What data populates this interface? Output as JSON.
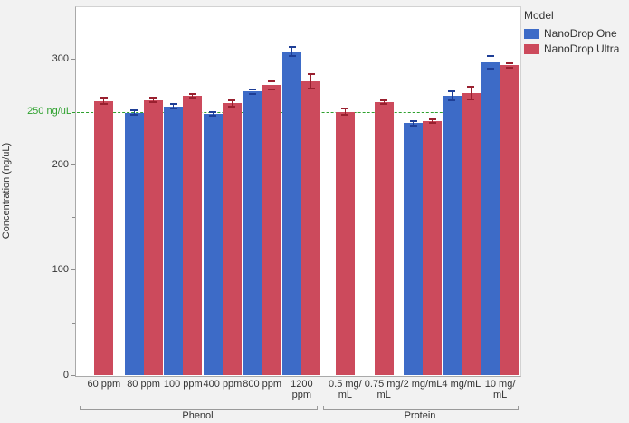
{
  "chart_data": {
    "type": "bar",
    "title": "",
    "ylabel": "Concentration (ng/uL)",
    "ylim": [
      0,
      350
    ],
    "y_ticks": [
      0,
      100,
      200,
      300
    ],
    "y_minor_step": 50,
    "grid": false,
    "reference_line": {
      "value": 250,
      "label": "250 ng/uL",
      "color": "#2EA12E",
      "style": "dashed"
    },
    "legend": {
      "title": "Model",
      "position": "top-right",
      "entries": [
        {
          "label": "NanoDrop One",
          "color": "#3D6BC7"
        },
        {
          "label": "NanoDrop Ultra",
          "color": "#CC4A5C"
        }
      ]
    },
    "error_bar_colors": {
      "NanoDrop One": "#1E3E96",
      "NanoDrop Ultra": "#99202F"
    },
    "groups": [
      {
        "label": "Phenol",
        "categories": [
          "60 ppm",
          "80 ppm",
          "100 ppm",
          "400 ppm",
          "800 ppm",
          "1200\nppm"
        ],
        "series": [
          {
            "name": "NanoDrop One",
            "values": [
              null,
              249,
              255,
              248,
              269,
              307
            ],
            "errors": [
              null,
              2,
              2,
              2,
              2,
              4
            ]
          },
          {
            "name": "NanoDrop Ultra",
            "values": [
              260,
              261,
              265,
              258,
              275,
              279
            ],
            "errors": [
              3,
              2,
              2,
              3,
              4,
              7
            ]
          }
        ]
      },
      {
        "label": "Protein",
        "categories": [
          "0.5 mg/\nmL",
          "0.75 mg/\nmL",
          "2 mg/mL",
          "4 mg/mL",
          "10 mg/\nmL"
        ],
        "series": [
          {
            "name": "NanoDrop One",
            "values": [
              null,
              null,
              239,
              265,
              297
            ],
            "errors": [
              null,
              null,
              2,
              4,
              6
            ]
          },
          {
            "name": "NanoDrop Ultra",
            "values": [
              250,
              259,
              241,
              268,
              294
            ],
            "errors": [
              3,
              2,
              2,
              6,
              2
            ]
          }
        ]
      }
    ]
  }
}
